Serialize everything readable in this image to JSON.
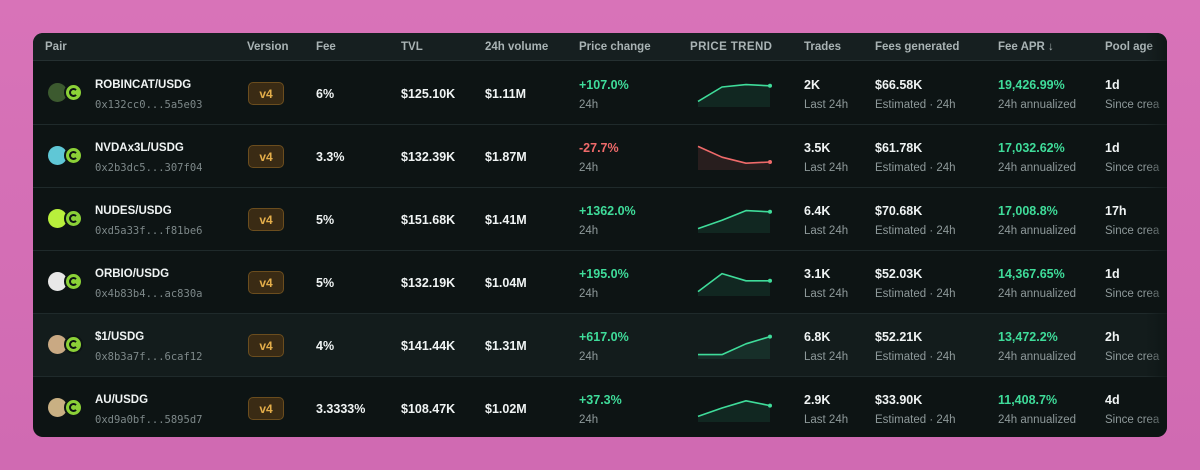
{
  "header": {
    "pair": "Pair",
    "version": "Version",
    "fee": "Fee",
    "tvl": "TVL",
    "volume": "24h volume",
    "price_change": "Price change",
    "price_trend": "PRICE TREND",
    "trades": "Trades",
    "fees_generated": "Fees generated",
    "fee_apr": "Fee APR ↓",
    "pool_age": "Pool age"
  },
  "colors": {
    "positive": "#3fdc9a",
    "negative": "#ef6a6a",
    "badge": "#e4ae4a",
    "usdg_icon": "#8bd137"
  },
  "rows": [
    {
      "pair": "ROBINCAT/USDG",
      "address": "0x132cc0...5a5e03",
      "icon_name": "robincat-token-icon",
      "icon_color": "#3c5a2f",
      "version": "v4",
      "fee": "6%",
      "tvl": "$125.10K",
      "volume": "$1.11M",
      "price_change": "+107.0%",
      "price_change_period": "24h",
      "trend_direction": "up",
      "trend": [
        0.15,
        0.75,
        0.85,
        0.8
      ],
      "trades": "2K",
      "trades_period": "Last 24h",
      "fees_generated": "$66.58K",
      "fees_note": "Estimated · 24h",
      "fee_apr": "19,426.99%",
      "apr_note": "24h annualized",
      "pool_age": "1d",
      "age_note": "Since crea"
    },
    {
      "pair": "NVDAx3L/USDG",
      "address": "0x2b3dc5...307f04",
      "icon_name": "nvdax3l-token-icon",
      "icon_color": "#5fc7d6",
      "version": "v4",
      "fee": "3.3%",
      "tvl": "$132.39K",
      "volume": "$1.87M",
      "price_change": "-27.7%",
      "price_change_period": "24h",
      "trend_direction": "down",
      "trend": [
        0.9,
        0.45,
        0.2,
        0.25
      ],
      "trades": "3.5K",
      "trades_period": "Last 24h",
      "fees_generated": "$61.78K",
      "fees_note": "Estimated · 24h",
      "fee_apr": "17,032.62%",
      "apr_note": "24h annualized",
      "pool_age": "1d",
      "age_note": "Since crea"
    },
    {
      "pair": "NUDES/USDG",
      "address": "0xd5a33f...f81be6",
      "icon_name": "nudes-token-icon",
      "icon_color": "#b8f03c",
      "version": "v4",
      "fee": "5%",
      "tvl": "$151.68K",
      "volume": "$1.41M",
      "price_change": "+1362.0%",
      "price_change_period": "24h",
      "trend_direction": "up",
      "trend": [
        0.1,
        0.45,
        0.85,
        0.8
      ],
      "trades": "6.4K",
      "trades_period": "Last 24h",
      "fees_generated": "$70.68K",
      "fees_note": "Estimated · 24h",
      "fee_apr": "17,008.8%",
      "apr_note": "24h annualized",
      "pool_age": "17h",
      "age_note": "Since crea"
    },
    {
      "pair": "ORBIO/USDG",
      "address": "0x4b83b4...ac830a",
      "icon_name": "orbio-token-icon",
      "icon_color": "#e8e8e8",
      "version": "v4",
      "fee": "5%",
      "tvl": "$132.19K",
      "volume": "$1.04M",
      "price_change": "+195.0%",
      "price_change_period": "24h",
      "trend_direction": "up",
      "trend": [
        0.1,
        0.85,
        0.55,
        0.55
      ],
      "trades": "3.1K",
      "trades_period": "Last 24h",
      "fees_generated": "$52.03K",
      "fees_note": "Estimated · 24h",
      "fee_apr": "14,367.65%",
      "apr_note": "24h annualized",
      "pool_age": "1d",
      "age_note": "Since crea"
    },
    {
      "pair": "$1/USDG",
      "address": "0x8b3a7f...6caf12",
      "icon_name": "dollar-one-token-icon",
      "icon_color": "#c9a983",
      "version": "v4",
      "fee": "4%",
      "tvl": "$141.44K",
      "volume": "$1.31M",
      "price_change": "+617.0%",
      "price_change_period": "24h",
      "trend_direction": "up",
      "trend": [
        0.1,
        0.1,
        0.55,
        0.85
      ],
      "trades": "6.8K",
      "trades_period": "Last 24h",
      "fees_generated": "$52.21K",
      "fees_note": "Estimated · 24h",
      "fee_apr": "13,472.2%",
      "apr_note": "24h annualized",
      "pool_age": "2h",
      "age_note": "Since crea"
    },
    {
      "pair": "AU/USDG",
      "address": "0xd9a0bf...5895d7",
      "icon_name": "au-token-icon",
      "icon_color": "#c9b083",
      "version": "v4",
      "fee": "3.3333%",
      "tvl": "$108.47K",
      "volume": "$1.02M",
      "price_change": "+37.3%",
      "price_change_period": "24h",
      "trend_direction": "up",
      "trend": [
        0.15,
        0.5,
        0.8,
        0.6
      ],
      "trades": "2.9K",
      "trades_period": "Last 24h",
      "fees_generated": "$33.90K",
      "fees_note": "Estimated · 24h",
      "fee_apr": "11,408.7%",
      "apr_note": "24h annualized",
      "pool_age": "4d",
      "age_note": "Since crea"
    }
  ]
}
